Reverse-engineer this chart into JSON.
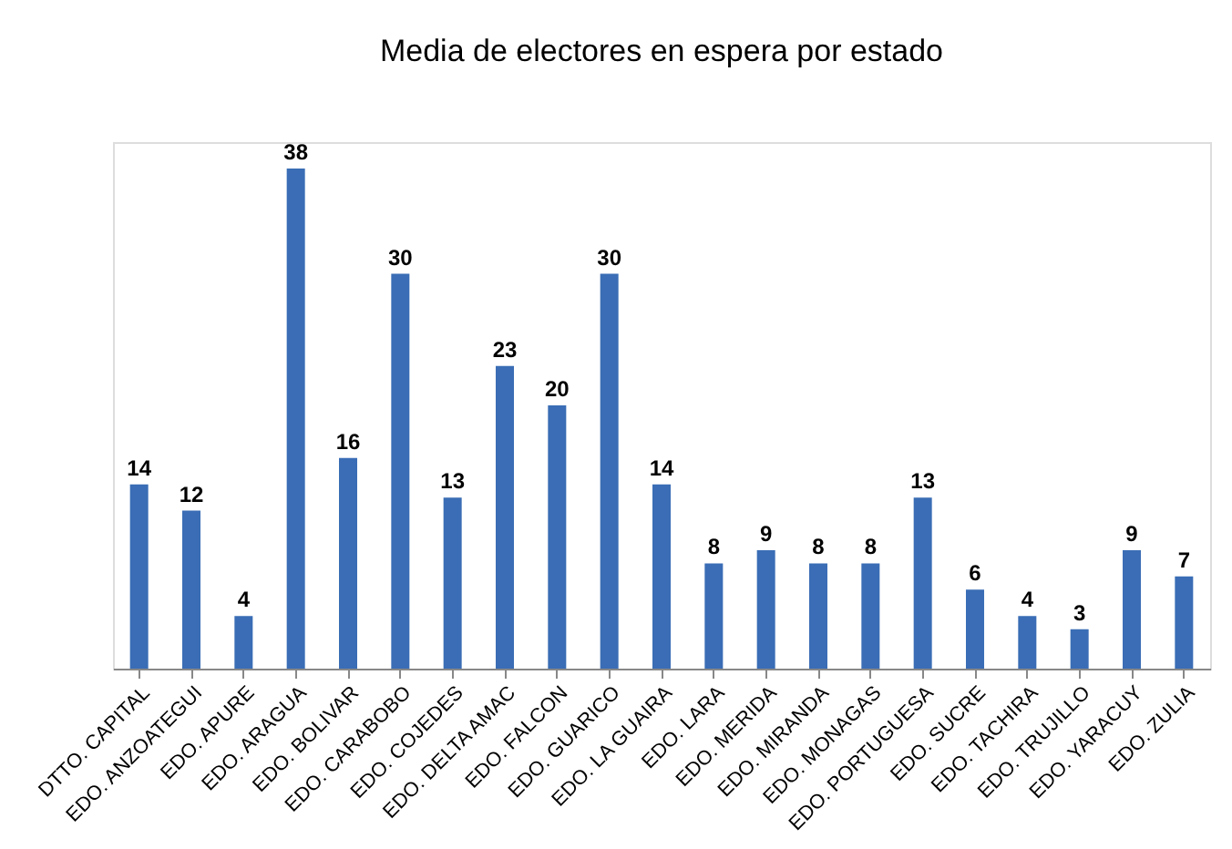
{
  "chart_data": {
    "type": "bar",
    "title": "Media de electores en espera por estado",
    "categories": [
      "DTTO. CAPITAL",
      "EDO. ANZOATEGUI",
      "EDO. APURE",
      "EDO. ARAGUA",
      "EDO. BOLIVAR",
      "EDO. CARABOBO",
      "EDO. COJEDES",
      "EDO. DELTA AMAC",
      "EDO. FALCON",
      "EDO. GUARICO",
      "EDO. LA GUAIRA",
      "EDO. LARA",
      "EDO. MERIDA",
      "EDO. MIRANDA",
      "EDO. MONAGAS",
      "EDO. PORTUGUESA",
      "EDO. SUCRE",
      "EDO. TACHIRA",
      "EDO. TRUJILLO",
      "EDO. YARACUY",
      "EDO. ZULIA"
    ],
    "values": [
      14,
      12,
      4,
      38,
      16,
      30,
      13,
      23,
      20,
      30,
      14,
      8,
      9,
      8,
      8,
      13,
      6,
      4,
      3,
      9,
      7
    ],
    "color": "#3a6db5",
    "data_labels": true
  }
}
